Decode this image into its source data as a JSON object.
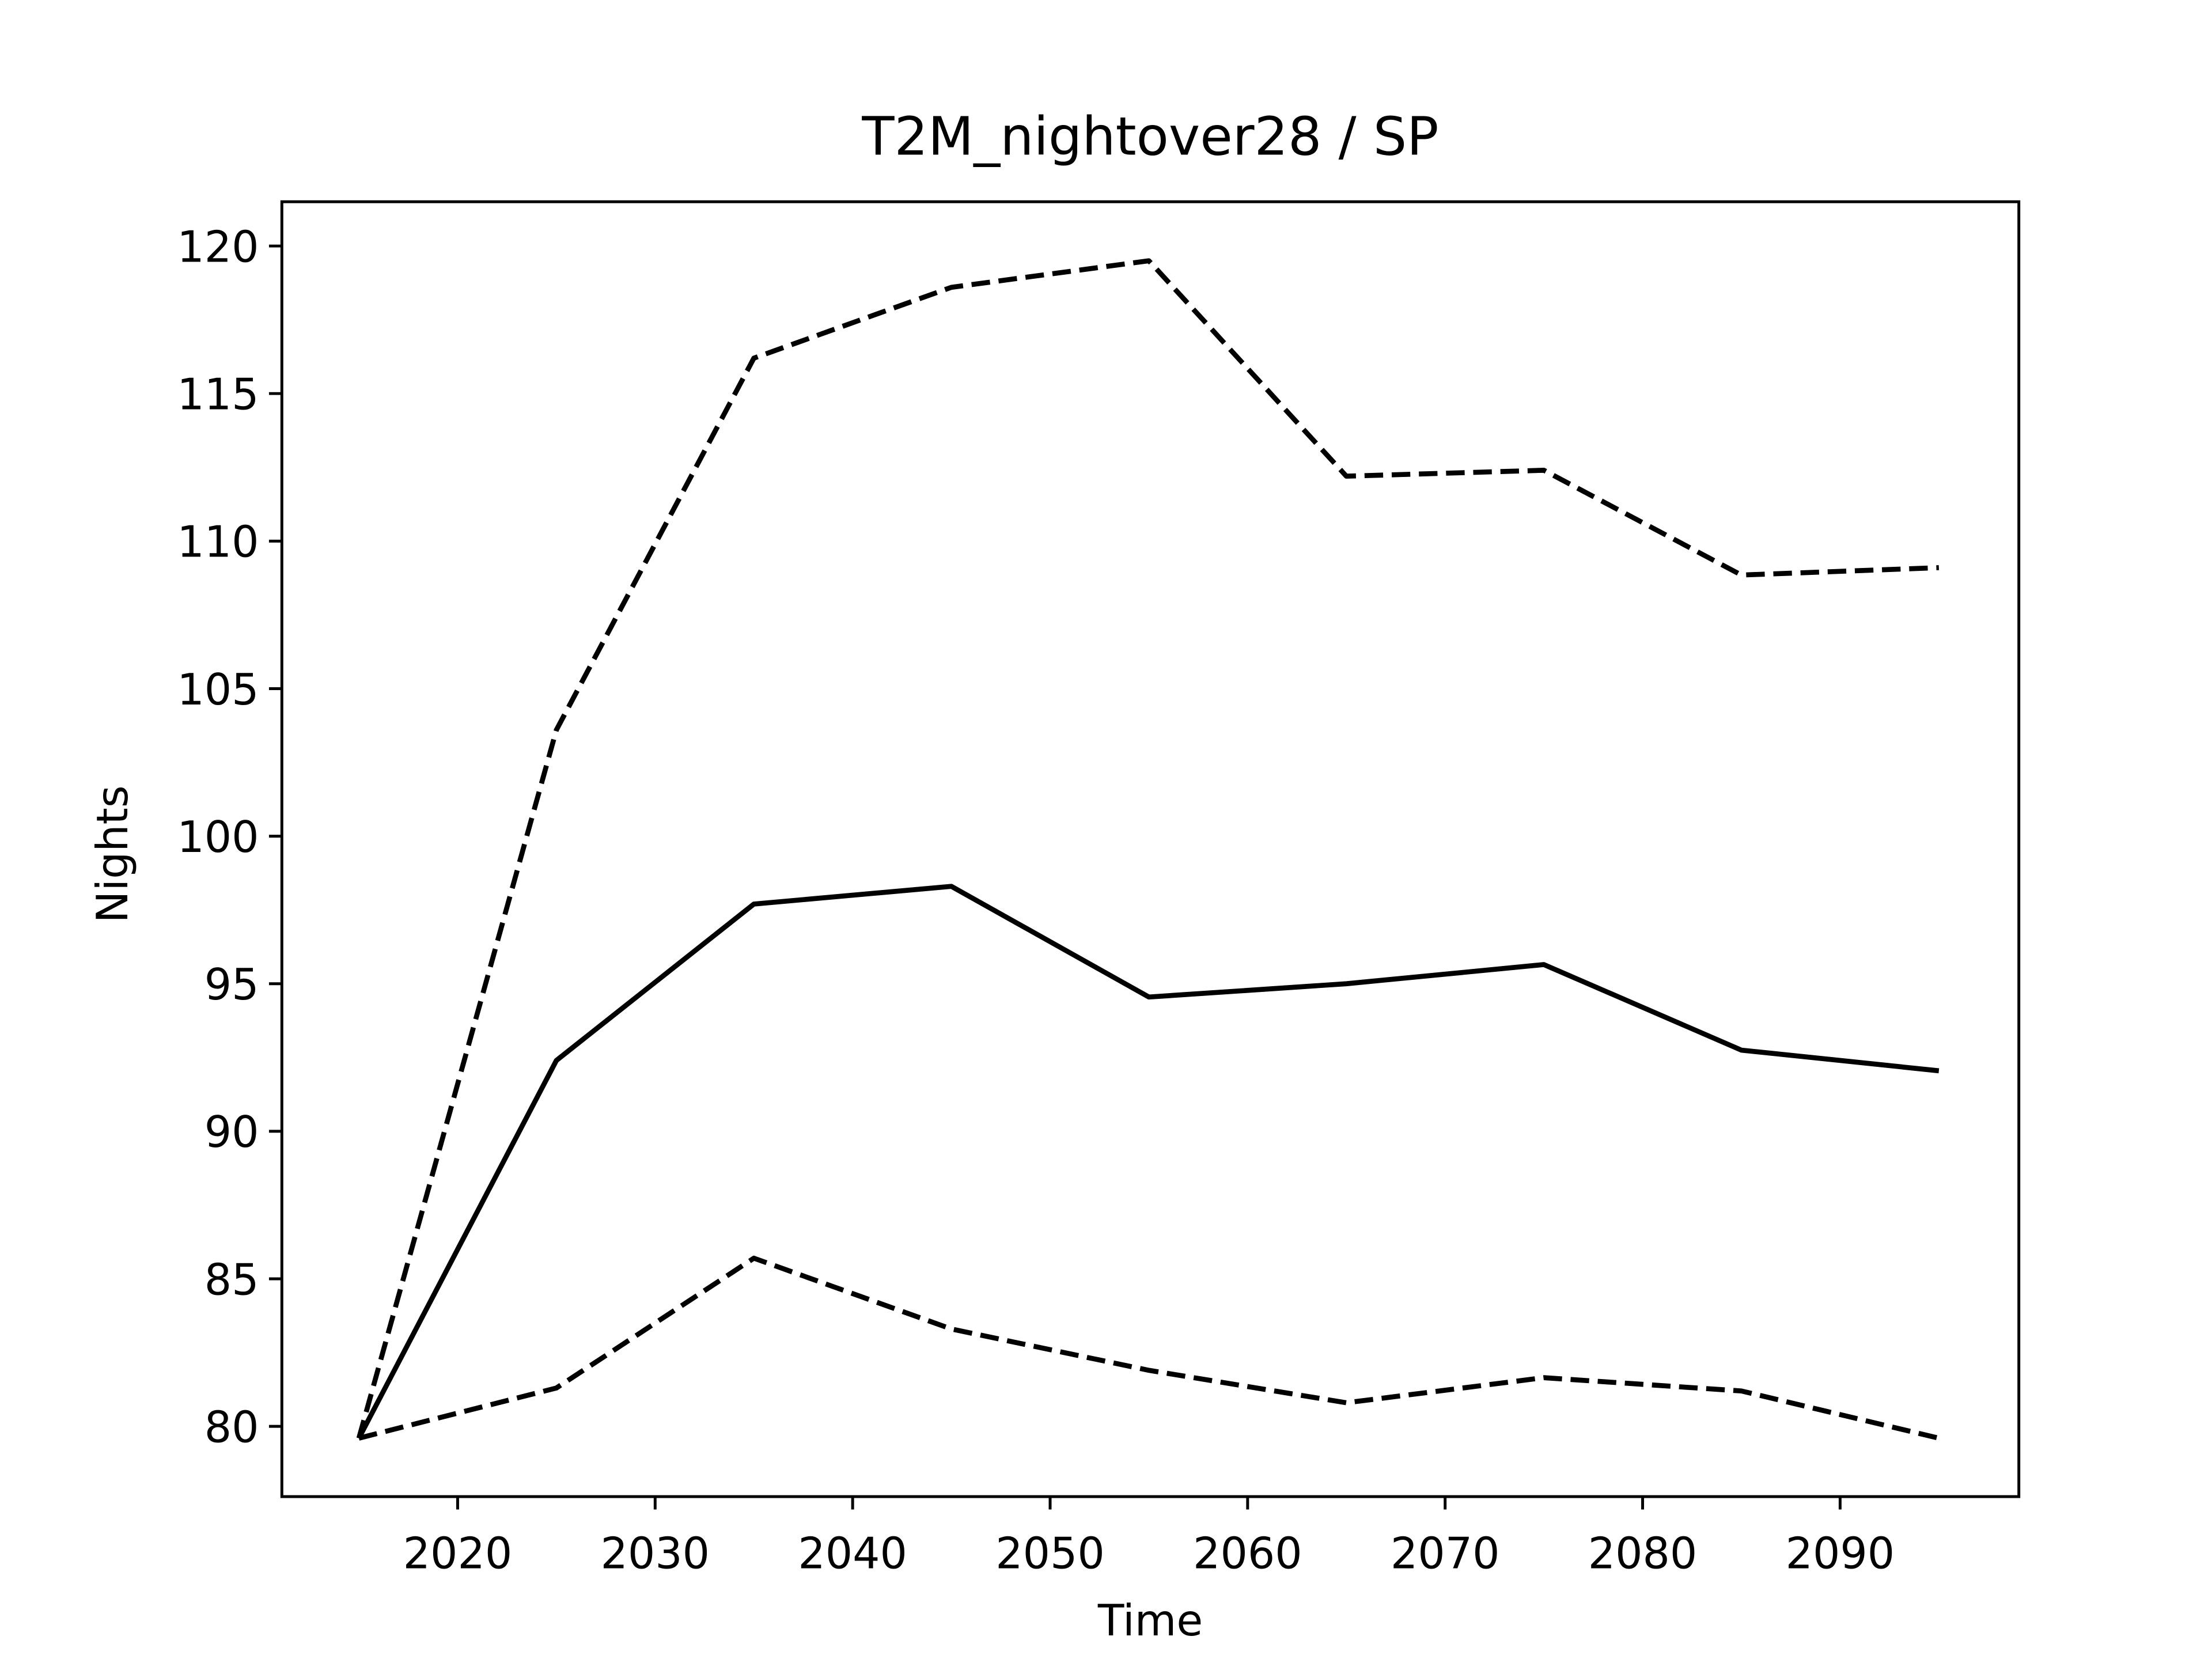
{
  "chart_data": {
    "type": "line",
    "title": "T2M_nightover28 / SP",
    "xlabel": "Time",
    "ylabel": "Nights",
    "x": [
      2015,
      2025,
      2035,
      2045,
      2055,
      2065,
      2075,
      2085,
      2095
    ],
    "series": [
      {
        "color": "#000000",
        "linestyle": "dashed",
        "values": [
          79.6,
          103.6,
          116.2,
          118.6,
          119.5,
          112.2,
          112.4,
          108.85,
          109.1
        ]
      },
      {
        "color": "#000000",
        "linestyle": "solid",
        "values": [
          79.6,
          92.4,
          97.7,
          98.3,
          94.55,
          95.0,
          95.65,
          92.75,
          92.05
        ]
      },
      {
        "color": "#000000",
        "linestyle": "dashed",
        "values": [
          79.6,
          81.3,
          85.7,
          83.3,
          81.9,
          80.8,
          81.65,
          81.2,
          79.6
        ]
      }
    ],
    "xlim": [
      2011.1,
      2099.05
    ],
    "xticks": [
      2020,
      2030,
      2040,
      2050,
      2060,
      2070,
      2080,
      2090
    ],
    "ylim": [
      77.62,
      121.5
    ],
    "yticks": [
      80,
      85,
      90,
      95,
      100,
      105,
      110,
      115,
      120
    ],
    "grid": false
  }
}
